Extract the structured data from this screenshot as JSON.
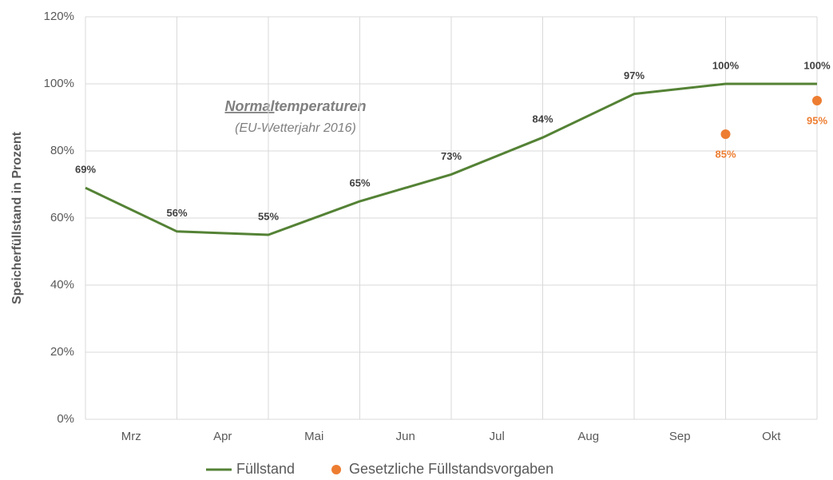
{
  "chart_data": {
    "type": "line",
    "y_label": "Speicherfüllstand in Prozent",
    "annotation": {
      "underlined": "Normal",
      "rest": "temperaturen",
      "note": "(EU-Wetterjahr 2016)"
    },
    "categories": [
      "Mrz",
      "Apr",
      "Mai",
      "Jun",
      "Jul",
      "Aug",
      "Sep",
      "Okt",
      null
    ],
    "series": [
      {
        "name": "Füllstand",
        "type": "line",
        "color": "#548235",
        "values": [
          69,
          56,
          55,
          65,
          73,
          84,
          97,
          100,
          100
        ],
        "value_labels": [
          "69%",
          "56%",
          "55%",
          "65%",
          "73%",
          "84%",
          "97%",
          "100%",
          "100%"
        ]
      },
      {
        "name": "Gesetzliche Füllstandsvorgaben",
        "type": "scatter",
        "color": "#ed7d31",
        "values": [
          null,
          null,
          null,
          null,
          null,
          null,
          null,
          85,
          95
        ],
        "value_labels": [
          null,
          null,
          null,
          null,
          null,
          null,
          null,
          "85%",
          "95%"
        ]
      }
    ],
    "ylim": [
      0,
      120
    ],
    "yticks": [
      {
        "value": 0,
        "label": "0%"
      },
      {
        "value": 20,
        "label": "20%"
      },
      {
        "value": 40,
        "label": "40%"
      },
      {
        "value": 60,
        "label": "60%"
      },
      {
        "value": 80,
        "label": "80%"
      },
      {
        "value": 100,
        "label": "100%"
      },
      {
        "value": 120,
        "label": "120%"
      }
    ],
    "grid": true,
    "legend": "bottom"
  }
}
